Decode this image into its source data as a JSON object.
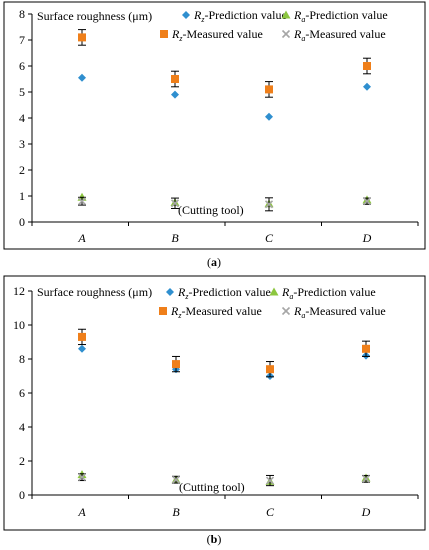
{
  "colors": {
    "rz_pred": "#2f8fcf",
    "ra_pred": "#8cc63f",
    "rz_meas": "#ef7f1a",
    "ra_meas": "#a6a6a6",
    "frame": "#000000",
    "error_bar": "#000000"
  },
  "chart_data": [
    {
      "type": "scatter",
      "caption": "(a)",
      "ylabel": "Surface roughness (μm)",
      "xlabel": "(Cutting tool)",
      "categories": [
        "A",
        "B",
        "C",
        "D"
      ],
      "yticks": [
        "0",
        "1",
        "2",
        "3",
        "4",
        "5",
        "6",
        "7",
        "8"
      ],
      "ylim": [
        0,
        8
      ],
      "grid": false,
      "legend_position": "top",
      "series": [
        {
          "key": "rz_pred",
          "var": "R",
          "sub": "z",
          "suffix": "-Prediction value",
          "marker": "diamond",
          "values": [
            5.55,
            4.9,
            4.05,
            5.2
          ]
        },
        {
          "key": "ra_pred",
          "var": "R",
          "sub": "a",
          "suffix": "-Prediction value",
          "marker": "triangle",
          "values": [
            0.95,
            0.75,
            0.7,
            0.85
          ]
        },
        {
          "key": "rz_meas",
          "var": "R",
          "sub": "z",
          "suffix": "-Measured value",
          "marker": "square",
          "values": [
            7.1,
            5.5,
            5.1,
            6.0
          ],
          "error": [
            0.3,
            0.3,
            0.3,
            0.3
          ]
        },
        {
          "key": "ra_meas",
          "var": "R",
          "sub": "a",
          "suffix": "-Measured value",
          "marker": "x",
          "values": [
            0.8,
            0.72,
            0.68,
            0.8
          ],
          "error": [
            0.15,
            0.2,
            0.25,
            0.12
          ]
        }
      ]
    },
    {
      "type": "scatter",
      "caption": "(b)",
      "ylabel": "Surface roughness (μm)",
      "xlabel": "(Cutting tool)",
      "categories": [
        "A",
        "B",
        "C",
        "D"
      ],
      "yticks": [
        "0",
        "2",
        "4",
        "6",
        "8",
        "10",
        "12"
      ],
      "ylim": [
        0,
        12
      ],
      "grid": false,
      "legend_position": "top",
      "series": [
        {
          "key": "rz_pred",
          "var": "R",
          "sub": "z",
          "suffix": "-Prediction value",
          "marker": "diamond",
          "values": [
            8.6,
            7.4,
            7.0,
            8.2
          ]
        },
        {
          "key": "ra_pred",
          "var": "R",
          "sub": "a",
          "suffix": "-Prediction value",
          "marker": "triangle",
          "values": [
            1.2,
            0.9,
            0.8,
            1.0
          ]
        },
        {
          "key": "rz_meas",
          "var": "R",
          "sub": "z",
          "suffix": "-Measured value",
          "marker": "square",
          "values": [
            9.3,
            7.7,
            7.4,
            8.6
          ],
          "error": [
            0.45,
            0.45,
            0.45,
            0.45
          ]
        },
        {
          "key": "ra_meas",
          "var": "R",
          "sub": "a",
          "suffix": "-Measured value",
          "marker": "x",
          "values": [
            1.05,
            0.9,
            0.85,
            0.95
          ],
          "error": [
            0.2,
            0.2,
            0.3,
            0.2
          ]
        }
      ]
    }
  ]
}
